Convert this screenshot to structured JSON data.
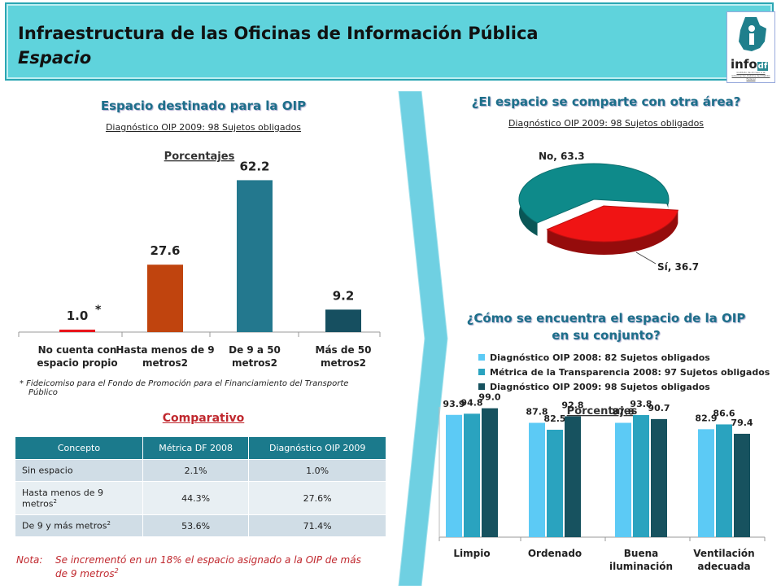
{
  "header": {
    "title": "Infraestructura de las Oficinas de Información Pública",
    "subtitle": "Espacio",
    "logo_text": "info",
    "logo_df": "df",
    "logo_sub": "Instituto de Acceso a la Información Pública del Distrito Federal"
  },
  "left": {
    "heading": "Espacio destinado para la OIP",
    "subheading": "Diagnóstico OIP 2009: 98 Sujetos obligados",
    "footnote_line1": "* Fideicomiso  para el  Fondo de Promoción  para el Financiamiento   del Transporte",
    "footnote_line2": "Público",
    "comparativo_title": "Comparativo"
  },
  "table": {
    "headers": [
      "Concepto",
      "Métrica DF 2008",
      "Diagnóstico OIP 2009"
    ],
    "rows": [
      {
        "concepto": "Sin espacio",
        "sup": "",
        "metrica": "2.1%",
        "diag": "1.0%"
      },
      {
        "concepto": "Hasta menos de 9 metros",
        "sup": "2",
        "metrica": "44.3%",
        "diag": "27.6%"
      },
      {
        "concepto": "De 9 y más metros",
        "sup": "2",
        "metrica": "53.6%",
        "diag": "71.4%"
      }
    ]
  },
  "note": {
    "label": "Nota:",
    "line1": "Se incrementó en un 18% el espacio asignado  a la OIP de más",
    "line2": "de 9 metros",
    "line2_sup": "2"
  },
  "right": {
    "pie_heading": "¿El espacio se comparte con otra área?",
    "pie_subheading": "Diagnóstico OIP 2009: 98 Sujetos obligados",
    "group_heading_line1": "¿Cómo se encuentra el espacio de la OIP",
    "group_heading_line2": "en su conjunto?"
  },
  "chart_data": [
    {
      "type": "bar",
      "title": "Porcentajes",
      "categories": [
        [
          "No cuenta con",
          "espacio propio"
        ],
        [
          "Hasta menos de 9",
          "metros2"
        ],
        [
          "De 9 a 50",
          "metros2"
        ],
        [
          "Más de 50",
          "metros2"
        ]
      ],
      "values": [
        1.0,
        27.6,
        62.2,
        9.2
      ],
      "value_labels": [
        "1.0",
        "27.6",
        "62.2",
        "9.2"
      ],
      "annotations": [
        "*"
      ],
      "colors": [
        "#e8141b",
        "#c0440e",
        "#23788e",
        "#164f60"
      ],
      "ylim": [
        0,
        70
      ]
    },
    {
      "type": "pie",
      "slices": [
        {
          "label": "No, 63.3",
          "value": 63.3,
          "color": "#0e8a8a"
        },
        {
          "label": "Sí, 36.7",
          "value": 36.7,
          "color": "#f01414"
        }
      ]
    },
    {
      "type": "bar",
      "title": "Porcentajes",
      "categories": [
        "Limpio",
        "Ordenado",
        [
          "Buena",
          "iluminación"
        ],
        [
          "Ventilación",
          "adecuada"
        ]
      ],
      "series": [
        {
          "name": "Diagnóstico OIP 2008: 82 Sujetos obligados",
          "values": [
            93.9,
            87.8,
            87.8,
            82.9
          ],
          "color": "#5ccaf5"
        },
        {
          "name": "Métrica de la Transparencia 2008: 97 Sujetos obligados",
          "values": [
            94.8,
            82.5,
            93.8,
            86.6
          ],
          "color": "#2aa3bf"
        },
        {
          "name": "Diagnóstico OIP 2009: 98 Sujetos obligados",
          "values": [
            99.0,
            92.8,
            90.7,
            79.4
          ],
          "color": "#17525f"
        }
      ],
      "ylim": [
        0,
        100
      ],
      "legend": "top"
    }
  ]
}
